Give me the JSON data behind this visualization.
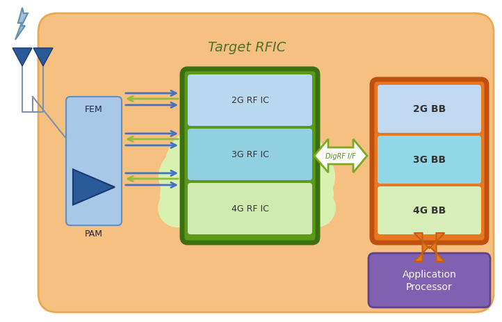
{
  "main_bg": "#F5C080",
  "main_bg_edge": "#E8A855",
  "cloud_color": "#D8F0B0",
  "cloud_label": "Target RFIC",
  "rfic_rows": [
    {
      "label": "2G RF IC",
      "color": "#B8D8F0"
    },
    {
      "label": "3G RF IC",
      "color": "#90D0E0"
    },
    {
      "label": "4G RF IC",
      "color": "#D0EAB0"
    }
  ],
  "bb_rows": [
    {
      "label": "2G BB",
      "color": "#C0D8F0"
    },
    {
      "label": "3G BB",
      "color": "#90D8E8"
    },
    {
      "label": "4G BB",
      "color": "#D8EEB8"
    }
  ],
  "digrf_label": "DigRF I/F",
  "app_label": "Application\nProcessor",
  "arrow_blue": "#4472C4",
  "arrow_green": "#8FBD3C",
  "arrow_orange": "#E87820",
  "rfic_green": "#5A9A1A",
  "rfic_green_dark": "#3A7010",
  "bb_orange": "#E87820",
  "bb_orange_dark": "#C05010",
  "fem_color": "#A8C8E8",
  "fem_edge": "#6090B8",
  "pam_color": "#2A5A9A",
  "ap_color": "#8060B0",
  "ap_edge": "#604090"
}
